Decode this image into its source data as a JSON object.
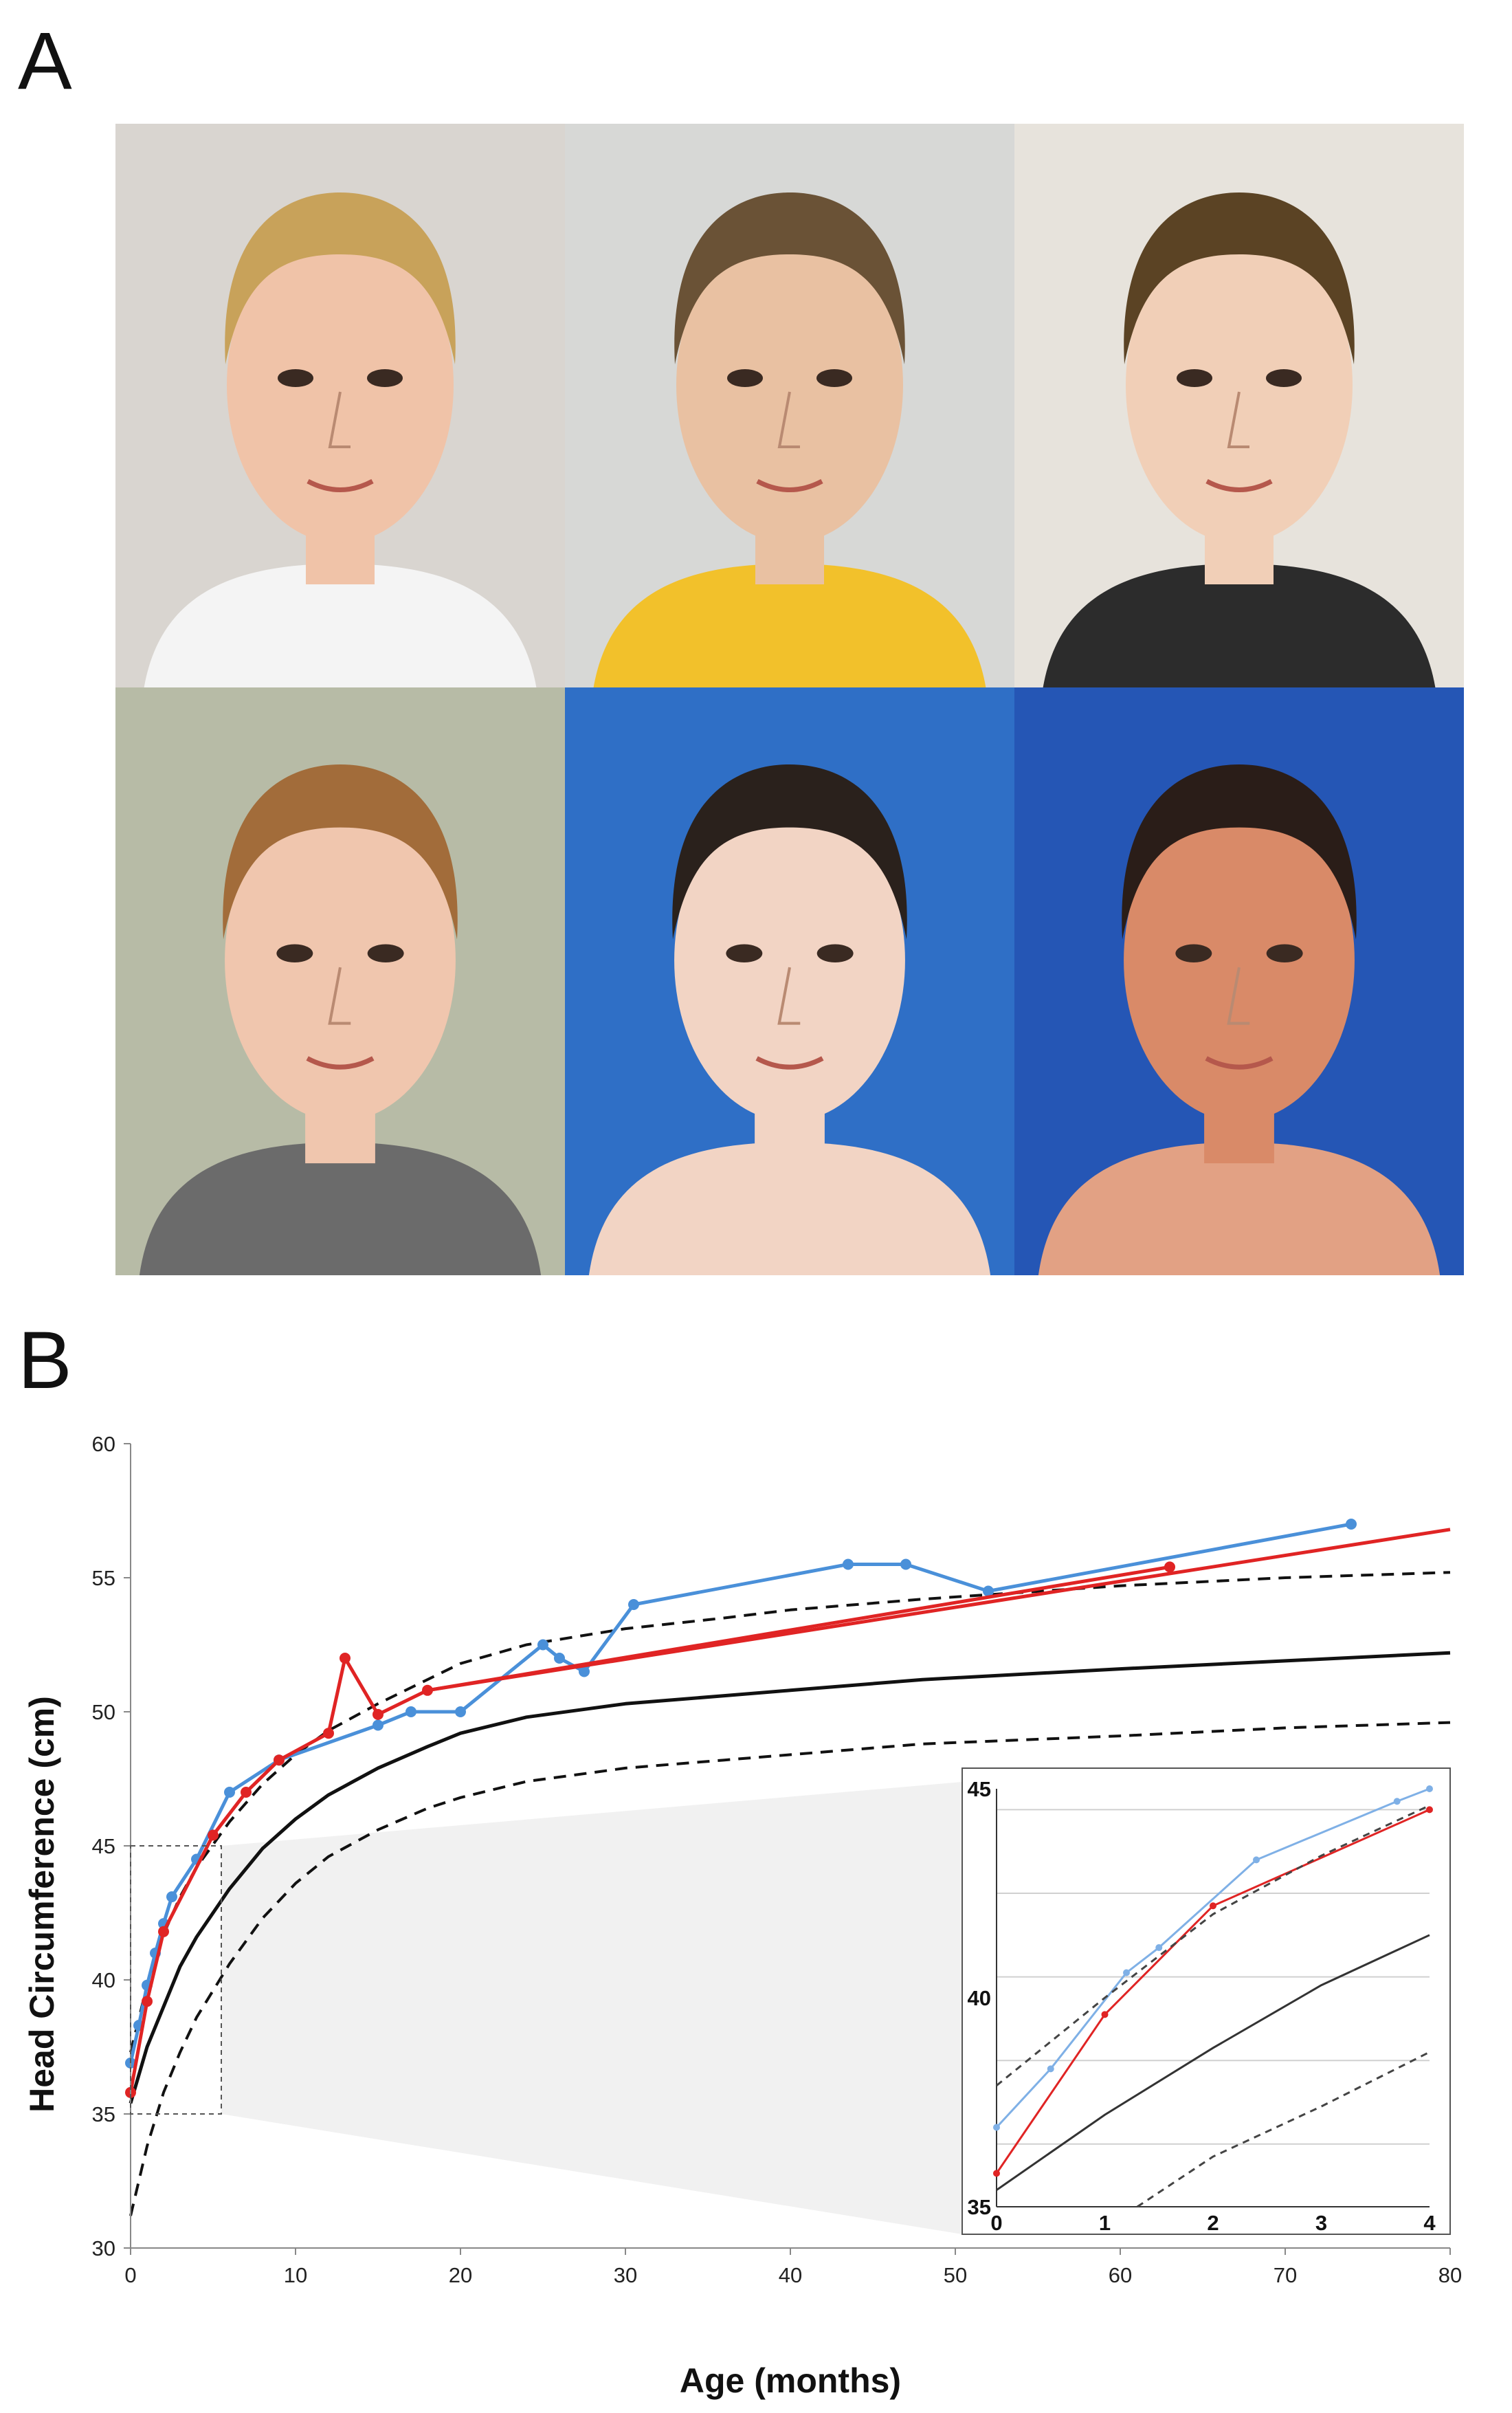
{
  "figure": {
    "panel_a_label": "A",
    "panel_b_label": "B"
  },
  "photos": [
    {
      "subject": "girl-blonde",
      "background": "#d9d5d0",
      "skin": "#f0c3a8",
      "hair": "#c8a25a",
      "shirt": "#f4f4f4"
    },
    {
      "subject": "boy-short-hair",
      "background": "#d7d8d6",
      "skin": "#e9c1a2",
      "hair": "#6a5236",
      "shirt": "#f2c12b"
    },
    {
      "subject": "girl-curly-hair",
      "background": "#e7e3dc",
      "skin": "#f1cfb7",
      "hair": "#5b4324",
      "shirt": "#2c2c2c"
    },
    {
      "subject": "teen-boy",
      "background": "#b7bba6",
      "skin": "#f0c6ae",
      "hair": "#a26c3a",
      "shirt": "#6b6b6b"
    },
    {
      "subject": "young-man",
      "background": "#2f6fc6",
      "skin": "#f2d4c4",
      "hair": "#2a211c",
      "shirt": "#f2d4c4"
    },
    {
      "subject": "woman",
      "background": "#2556b5",
      "skin": "#d98a68",
      "hair": "#2a1d18",
      "shirt": "#e2a184"
    }
  ],
  "chart_data": {
    "type": "line",
    "xlabel": "Age (months)",
    "ylabel": "Head Circumference (cm)",
    "xlim": [
      0,
      80
    ],
    "ylim": [
      30,
      60
    ],
    "xticks": [
      "0",
      "10",
      "20",
      "30",
      "40",
      "50",
      "60",
      "70",
      "80"
    ],
    "yticks": [
      "30",
      "35",
      "40",
      "45",
      "50",
      "55",
      "60"
    ],
    "series": [
      {
        "name": "patient-blue",
        "color": "#4a90d9",
        "markers": true,
        "x": [
          0,
          0.5,
          1,
          1.5,
          2,
          2.5,
          4,
          6,
          9,
          15,
          17,
          20,
          25,
          26,
          27.5,
          30.5,
          43.5,
          47,
          52,
          74
        ],
        "y": [
          36.9,
          38.3,
          39.8,
          41.0,
          42.1,
          43.1,
          44.5,
          47.0,
          48.2,
          49.5,
          50.0,
          50.0,
          52.5,
          52.0,
          51.5,
          54.0,
          55.5,
          55.5,
          54.5,
          57.0
        ]
      },
      {
        "name": "patient-red",
        "color": "#e02424",
        "markers": true,
        "x": [
          0,
          1,
          2,
          5,
          7,
          9,
          12,
          13,
          15,
          18,
          63
        ],
        "y": [
          35.8,
          39.2,
          41.8,
          45.4,
          47.0,
          48.2,
          49.2,
          52.0,
          49.9,
          50.8,
          55.4
        ]
      },
      {
        "name": "red-trend",
        "color": "#e02424",
        "markers": false,
        "x": [
          18,
          80
        ],
        "y": [
          50.8,
          56.8
        ]
      },
      {
        "name": "median",
        "color": "#111111",
        "dash": false,
        "x": [
          0,
          1,
          2,
          3,
          4,
          6,
          8,
          10,
          12,
          15,
          18,
          20,
          24,
          30,
          36,
          40,
          48,
          60,
          70,
          80
        ],
        "y": [
          35.4,
          37.5,
          39.0,
          40.5,
          41.6,
          43.4,
          44.9,
          46.0,
          46.9,
          47.9,
          48.7,
          49.2,
          49.8,
          50.3,
          50.6,
          50.8,
          51.2,
          51.6,
          51.9,
          52.2
        ]
      },
      {
        "name": "upper-limit",
        "color": "#111111",
        "dash": true,
        "x": [
          0,
          1,
          2,
          3,
          4,
          6,
          8,
          10,
          12,
          15,
          18,
          20,
          24,
          30,
          36,
          40,
          48,
          60,
          70,
          80
        ],
        "y": [
          37.3,
          39.8,
          41.7,
          43.1,
          44.2,
          45.9,
          47.3,
          48.4,
          49.3,
          50.3,
          51.2,
          51.8,
          52.5,
          53.1,
          53.5,
          53.8,
          54.2,
          54.7,
          55.0,
          55.2
        ]
      },
      {
        "name": "lower-limit",
        "color": "#111111",
        "dash": true,
        "x": [
          0,
          1,
          2,
          3,
          4,
          6,
          8,
          10,
          12,
          15,
          18,
          20,
          24,
          30,
          36,
          40,
          48,
          60,
          70,
          80
        ],
        "y": [
          31.2,
          33.8,
          35.8,
          37.3,
          38.6,
          40.6,
          42.3,
          43.6,
          44.6,
          45.6,
          46.4,
          46.8,
          47.4,
          47.9,
          48.2,
          48.4,
          48.8,
          49.1,
          49.4,
          49.6
        ]
      }
    ],
    "inset": {
      "xlim": [
        0,
        4
      ],
      "ylim": [
        35,
        45
      ],
      "xticks": [
        "0",
        "1",
        "2",
        "3",
        "4"
      ],
      "yticks": [
        "35",
        "40",
        "45"
      ],
      "series": [
        {
          "name": "patient-blue",
          "color": "#7fb0e6",
          "x": [
            0,
            0.5,
            1.2,
            1.5,
            2.4,
            3.7,
            4
          ],
          "y": [
            36.9,
            38.3,
            40.6,
            41.2,
            43.3,
            44.7,
            45.0
          ]
        },
        {
          "name": "patient-red",
          "color": "#e02424",
          "x": [
            0,
            1,
            2,
            4
          ],
          "y": [
            35.8,
            39.6,
            42.2,
            44.5
          ]
        },
        {
          "name": "median",
          "color": "#333333",
          "x": [
            0,
            1,
            2,
            3,
            4
          ],
          "y": [
            35.4,
            37.2,
            38.8,
            40.3,
            41.5
          ]
        },
        {
          "name": "upper-limit",
          "color": "#444444",
          "dash": true,
          "x": [
            0,
            1,
            2,
            3,
            4
          ],
          "y": [
            37.9,
            40.0,
            42.0,
            43.4,
            44.6
          ]
        },
        {
          "name": "lower-limit",
          "color": "#444444",
          "dash": true,
          "x": [
            1.3,
            2,
            3,
            4
          ],
          "y": [
            35.0,
            36.2,
            37.4,
            38.7
          ]
        }
      ]
    }
  }
}
